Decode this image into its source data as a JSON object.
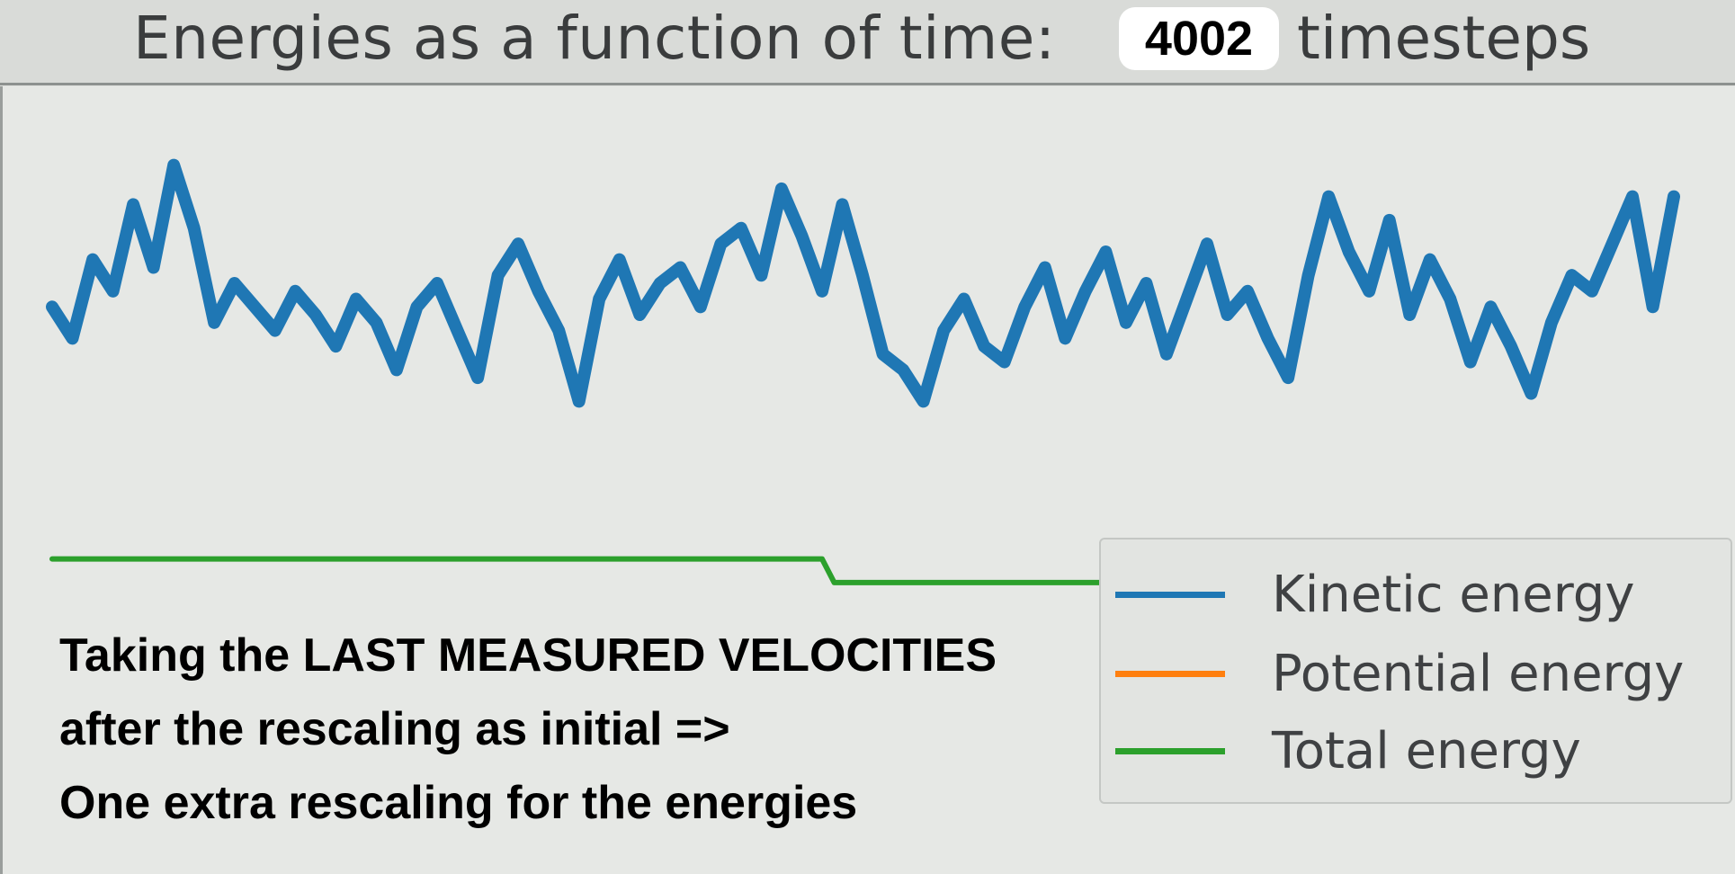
{
  "title": {
    "prefix": "Energies as a function of time:",
    "count": "4002",
    "suffix": "timesteps"
  },
  "annotation": {
    "lines": [
      "Taking the LAST MEASURED VELOCITIES",
      "after the rescaling as initial =>",
      "One extra rescaling for the energies"
    ]
  },
  "colors": {
    "kinetic": "#1f77b4",
    "potential": "#ff7f0e",
    "total": "#2ca02c"
  },
  "chart_data": {
    "type": "line",
    "title": "Energies as a function of time: 4002 timesteps",
    "xlabel": "",
    "ylabel": "",
    "xlim": [
      0,
      4002
    ],
    "ylim": [
      0,
      1
    ],
    "grid": false,
    "legend_position": "bottom-right",
    "series": [
      {
        "name": "Kinetic energy",
        "color": "#1f77b4",
        "x": [
          0,
          50,
          100,
          150,
          200,
          250,
          300,
          350,
          400,
          450,
          500,
          550,
          600,
          650,
          700,
          750,
          800,
          850,
          900,
          950,
          1000,
          1050,
          1100,
          1150,
          1200,
          1250,
          1300,
          1350,
          1400,
          1450,
          1500,
          1550,
          1600,
          1650,
          1700,
          1750,
          1800,
          1850,
          1900,
          1950,
          2000,
          2050,
          2100,
          2150,
          2200,
          2250,
          2300,
          2350,
          2400,
          2450,
          2500,
          2550,
          2600,
          2650,
          2700,
          2750,
          2800,
          2850,
          2900,
          2950,
          3000,
          3050,
          3100,
          3150,
          3200,
          3250,
          3300,
          3350,
          3400,
          3450,
          3500,
          3550,
          3600,
          3650,
          3700,
          3750,
          3800,
          3850,
          3900,
          3950,
          4002
        ],
        "y": [
          0.72,
          0.68,
          0.78,
          0.74,
          0.85,
          0.77,
          0.9,
          0.82,
          0.7,
          0.75,
          0.72,
          0.69,
          0.74,
          0.71,
          0.67,
          0.73,
          0.7,
          0.64,
          0.72,
          0.75,
          0.69,
          0.63,
          0.76,
          0.8,
          0.74,
          0.69,
          0.6,
          0.73,
          0.78,
          0.71,
          0.75,
          0.77,
          0.72,
          0.8,
          0.82,
          0.76,
          0.87,
          0.81,
          0.74,
          0.85,
          0.76,
          0.66,
          0.64,
          0.6,
          0.69,
          0.73,
          0.67,
          0.65,
          0.72,
          0.77,
          0.68,
          0.74,
          0.79,
          0.7,
          0.75,
          0.66,
          0.73,
          0.8,
          0.71,
          0.74,
          0.68,
          0.63,
          0.76,
          0.86,
          0.79,
          0.74,
          0.83,
          0.71,
          0.78,
          0.73,
          0.65,
          0.72,
          0.67,
          0.61,
          0.7,
          0.76,
          0.74,
          0.8,
          0.86,
          0.72,
          0.86
        ]
      },
      {
        "name": "Potential energy",
        "color": "#ff7f0e",
        "x": [],
        "y": []
      },
      {
        "name": "Total energy",
        "color": "#2ca02c",
        "x": [
          0,
          1900,
          1930,
          4002
        ],
        "y": [
          0.4,
          0.4,
          0.37,
          0.37
        ]
      }
    ]
  }
}
